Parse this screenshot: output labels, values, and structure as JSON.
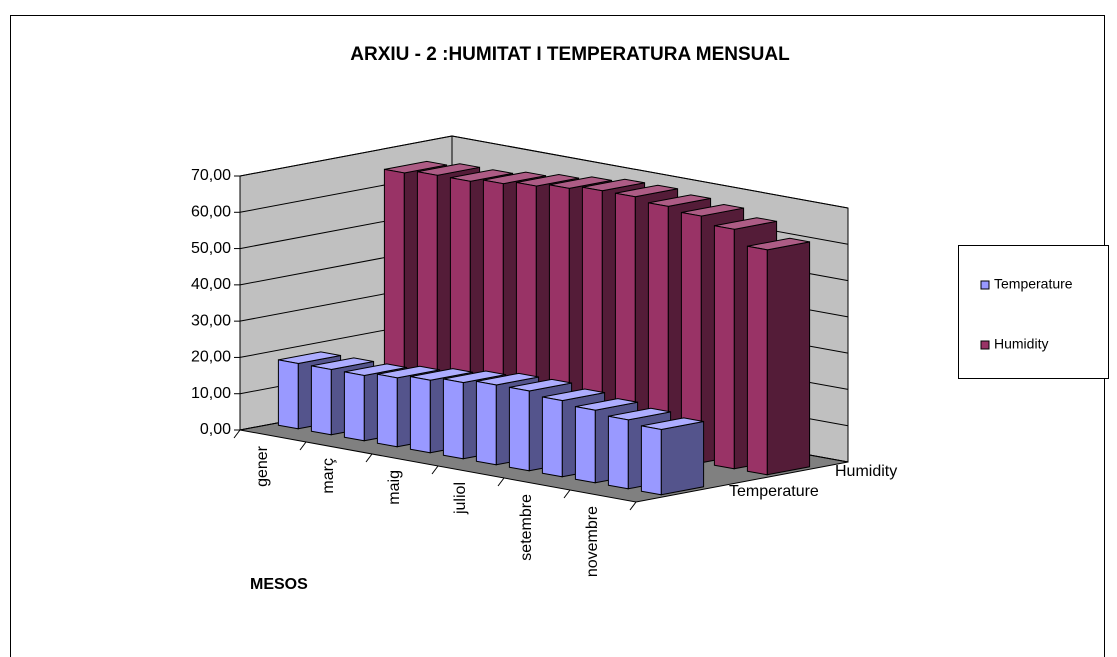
{
  "chart_data": {
    "type": "bar3d",
    "title": "ARXIU - 2 :HUMITAT I TEMPERATURA MENSUAL",
    "x_label": "MESOS",
    "categories": [
      "gener",
      null,
      "març",
      null,
      "maig",
      null,
      "juliol",
      null,
      "setembre",
      null,
      "novembre",
      null
    ],
    "series": [
      {
        "name": "Temperature",
        "color": "#9999ff",
        "values": [
          18,
          18,
          18,
          19,
          20,
          21,
          22,
          22,
          21,
          20,
          19,
          18
        ]
      },
      {
        "name": "Humidity",
        "color": "#993366",
        "values": [
          65,
          66,
          66,
          67,
          68,
          69,
          70,
          70,
          69,
          68,
          66,
          62
        ]
      }
    ],
    "ylim": [
      0,
      70
    ],
    "yticks": [
      {
        "value": 0,
        "label": "0,00"
      },
      {
        "value": 10,
        "label": "10,00"
      },
      {
        "value": 20,
        "label": "20,00"
      },
      {
        "value": 30,
        "label": "30,00"
      },
      {
        "value": 40,
        "label": "40,00"
      },
      {
        "value": 50,
        "label": "50,00"
      },
      {
        "value": 60,
        "label": "60,00"
      },
      {
        "value": 70,
        "label": "70,00"
      }
    ],
    "grid": true,
    "legend": "right"
  }
}
